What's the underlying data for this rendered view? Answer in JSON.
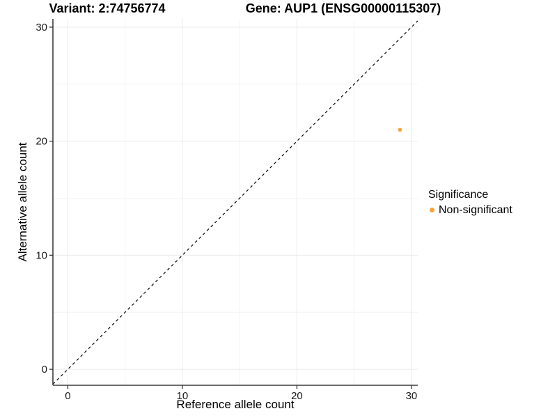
{
  "figure": {
    "background": "#FFFFFF"
  },
  "chart_data": {
    "type": "scatter",
    "title_left": "Variant: 2:74756774",
    "title_right": "Gene: AUP1 (ENSG00000115307)",
    "xlabel": "Reference allele count",
    "ylabel": "Alternative allele count",
    "xlim": [
      -1.3,
      30.55
    ],
    "ylim": [
      -1.4,
      30.73
    ],
    "x_ticks": [
      0,
      10,
      20,
      30
    ],
    "y_ticks": [
      0,
      10,
      20,
      30
    ],
    "x_minor_ticks": [
      5,
      15,
      25
    ],
    "y_minor_ticks": [
      5,
      15,
      25
    ],
    "grid": {
      "show": true,
      "major_color": "#EBEBEB",
      "minor_color": "#F4F4F4"
    },
    "axis": {
      "color": "#3D3D3D",
      "tick_label_color": "#1A1A1A"
    },
    "identity_line": {
      "type": "y=x",
      "style": "dashed",
      "color": "#000000"
    },
    "points": [
      {
        "x": 29,
        "y": 21,
        "series": "Non-significant",
        "color": "#F9A33C"
      }
    ],
    "legend": {
      "title": "Significance",
      "position": "right",
      "entries": [
        {
          "label": "Non-significant",
          "color": "#F9A33C"
        }
      ]
    }
  }
}
